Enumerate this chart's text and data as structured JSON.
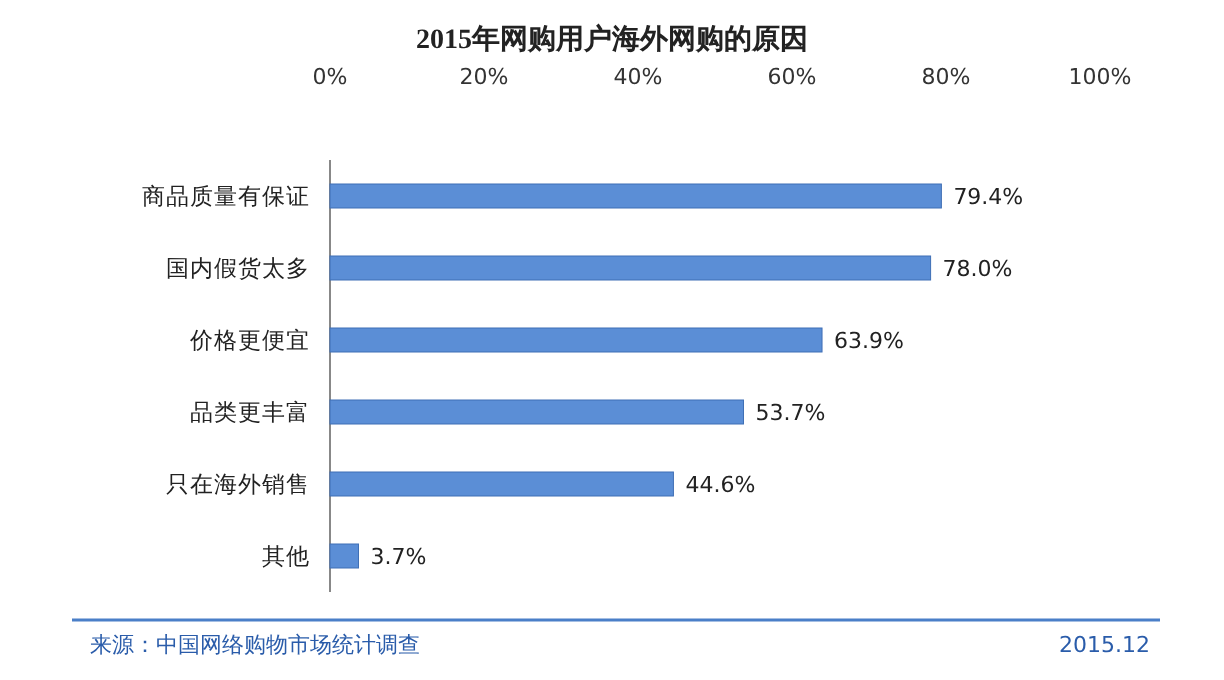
{
  "chart_data": {
    "type": "bar",
    "orientation": "horizontal",
    "title": "2015年网购用户海外网购的原因",
    "categories": [
      "商品质量有保证",
      "国内假货太多",
      "价格更便宜",
      "品类更丰富",
      "只在海外销售",
      "其他"
    ],
    "values": [
      79.4,
      78.0,
      63.9,
      53.7,
      44.6,
      3.7
    ],
    "value_labels": [
      "79.4%",
      "78.0%",
      "63.9%",
      "53.7%",
      "44.6%",
      "3.7%"
    ],
    "color": "#5b8ed6",
    "xlim": [
      0,
      100
    ],
    "xticks": [
      {
        "value": 0,
        "label": "0%"
      },
      {
        "value": 20,
        "label": "20%"
      },
      {
        "value": 40,
        "label": "40%"
      },
      {
        "value": 60,
        "label": "60%"
      },
      {
        "value": 80,
        "label": "80%"
      },
      {
        "value": 100,
        "label": "100%"
      }
    ],
    "annotations": [
      "来源：中国网络购物市场统计调查",
      "2015.12"
    ]
  }
}
